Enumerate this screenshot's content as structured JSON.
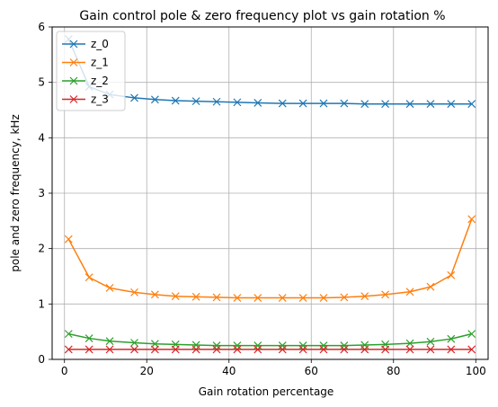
{
  "chart_data": {
    "type": "line",
    "title": "Gain control pole & zero frequency plot vs gain rotation %",
    "xlabel": "Gain rotation percentage",
    "ylabel": "pole and zero frequency, kHz",
    "xlim": [
      -3,
      103
    ],
    "ylim": [
      0,
      6
    ],
    "xticks": [
      0,
      20,
      40,
      60,
      80,
      100
    ],
    "yticks": [
      0,
      1,
      2,
      3,
      4,
      5,
      6
    ],
    "grid": true,
    "legend_position": "upper left",
    "marker": "x",
    "x": [
      1,
      6,
      11,
      17,
      22,
      27,
      32,
      37,
      42,
      47,
      53,
      58,
      63,
      68,
      73,
      78,
      84,
      89,
      94,
      99
    ],
    "series": [
      {
        "name": "z_0",
        "color": "#1f77b4",
        "values": [
          5.78,
          4.92,
          4.78,
          4.72,
          4.69,
          4.67,
          4.66,
          4.65,
          4.64,
          4.63,
          4.62,
          4.62,
          4.62,
          4.62,
          4.61,
          4.61,
          4.61,
          4.61,
          4.61,
          4.61
        ]
      },
      {
        "name": "z_1",
        "color": "#ff7f0e",
        "values": [
          2.17,
          1.48,
          1.29,
          1.21,
          1.17,
          1.14,
          1.13,
          1.12,
          1.11,
          1.11,
          1.11,
          1.11,
          1.11,
          1.12,
          1.14,
          1.17,
          1.22,
          1.31,
          1.52,
          2.53
        ]
      },
      {
        "name": "z_2",
        "color": "#2ca02c",
        "values": [
          0.46,
          0.38,
          0.33,
          0.3,
          0.28,
          0.27,
          0.26,
          0.25,
          0.25,
          0.25,
          0.25,
          0.25,
          0.25,
          0.25,
          0.26,
          0.27,
          0.29,
          0.32,
          0.37,
          0.46
        ]
      },
      {
        "name": "z_3",
        "color": "#d62728",
        "values": [
          0.18,
          0.18,
          0.18,
          0.18,
          0.18,
          0.18,
          0.18,
          0.18,
          0.18,
          0.18,
          0.18,
          0.18,
          0.18,
          0.18,
          0.18,
          0.18,
          0.18,
          0.18,
          0.18,
          0.18
        ]
      }
    ]
  }
}
